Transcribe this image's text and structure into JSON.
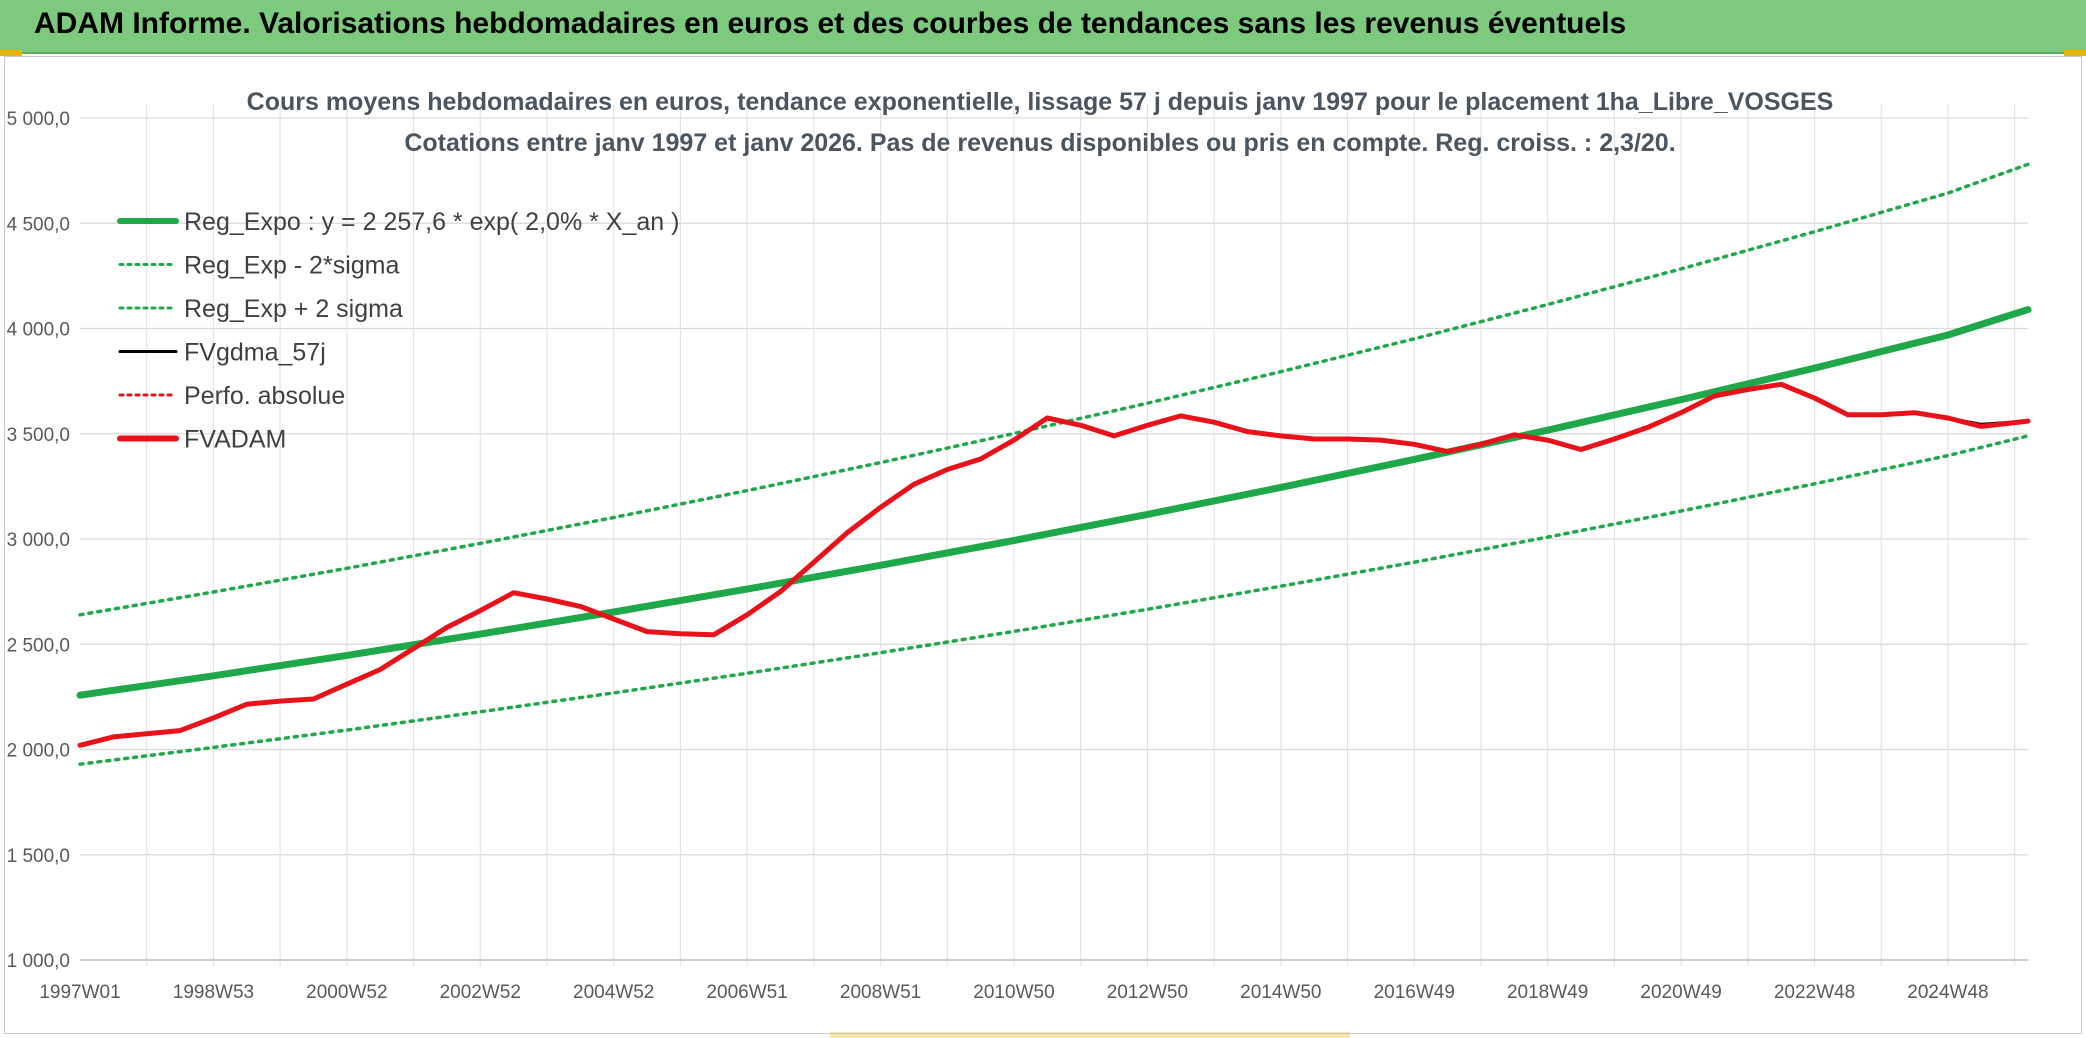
{
  "header": {
    "title": "ADAM Informe. Valorisations hebdomadaires en euros et des courbes de tendances sans les revenus éventuels"
  },
  "colors": {
    "header_bg": "#7dc97d",
    "trend": "#1fa84a",
    "band": "#1fa84a",
    "fvadam": "#e8121b",
    "fvgdma": "#000000",
    "perfo": "#e8121b"
  },
  "chart_data": {
    "type": "line",
    "title_line1": "Cours moyens hebdomadaires en euros, tendance exponentielle, lissage 57 j depuis janv 1997 pour le placement 1ha_Libre_VOSGES",
    "title_line2": "Cotations entre janv 1997 et janv 2026. Pas de revenus disponibles ou pris en compte. Reg. croiss. : 2,3/20.",
    "xlim": [
      1997.0,
      2026.2
    ],
    "ylim": [
      1000,
      5000
    ],
    "y_ticks": [
      1000,
      1500,
      2000,
      2500,
      3000,
      3500,
      4000,
      4500,
      5000
    ],
    "y_tick_labels": [
      "1 000,0",
      "1 500,0",
      "2 000,0",
      "2 500,0",
      "3 000,0",
      "3 500,0",
      "4 000,0",
      "4 500,0",
      "5 000,0"
    ],
    "x_ticks": [
      1997.0,
      1999.0,
      2001.0,
      2003.0,
      2005.0,
      2007.0,
      2009.0,
      2011.0,
      2013.0,
      2015.0,
      2017.0,
      2019.0,
      2021.0,
      2023.0,
      2025.0
    ],
    "x_tick_labels": [
      "1997W01",
      "1998W53",
      "2000W52",
      "2002W52",
      "2004W52",
      "2006W51",
      "2008W51",
      "2010W50",
      "2012W50",
      "2014W50",
      "2016W49",
      "2018W49",
      "2020W49",
      "2022W48",
      "2024W48"
    ],
    "legend": {
      "placement": "top-left",
      "entries": [
        {
          "label": "Reg_Expo : y = 2 257,6 * exp( 2,0% *  X_an )",
          "style": "solid-thick",
          "color": "#1fa84a"
        },
        {
          "label": "Reg_Exp - 2*sigma",
          "style": "dotted",
          "color": "#1fa84a"
        },
        {
          "label": "Reg_Exp + 2 sigma",
          "style": "dotted",
          "color": "#1fa84a"
        },
        {
          "label": "FVgdma_57j",
          "style": "solid",
          "color": "#000000"
        },
        {
          "label": "Perfo. absolue",
          "style": "dotted",
          "color": "#e8121b"
        },
        {
          "label": "FVADAM",
          "style": "solid-thick",
          "color": "#e8121b"
        }
      ]
    },
    "series": [
      {
        "name": "Reg_Expo",
        "x": [
          1997.0,
          1999.0,
          2001.0,
          2003.0,
          2005.0,
          2007.0,
          2009.0,
          2011.0,
          2013.0,
          2015.0,
          2017.0,
          2019.0,
          2021.0,
          2023.0,
          2025.0,
          2026.2
        ],
        "y": [
          2258,
          2350,
          2447,
          2548,
          2653,
          2762,
          2875,
          2993,
          3117,
          3245,
          3378,
          3517,
          3662,
          3812,
          3969,
          4090
        ]
      },
      {
        "name": "Reg_Exp - 2*sigma",
        "x": [
          1997.0,
          1999.0,
          2001.0,
          2003.0,
          2005.0,
          2007.0,
          2009.0,
          2011.0,
          2013.0,
          2015.0,
          2017.0,
          2019.0,
          2021.0,
          2023.0,
          2025.0,
          2026.2
        ],
        "y": [
          1930,
          2010,
          2092,
          2179,
          2269,
          2362,
          2460,
          2561,
          2666,
          2776,
          2890,
          3009,
          3133,
          3262,
          3396,
          3490
        ]
      },
      {
        "name": "Reg_Exp + 2 sigma",
        "x": [
          1997.0,
          1999.0,
          2001.0,
          2003.0,
          2005.0,
          2007.0,
          2009.0,
          2011.0,
          2013.0,
          2015.0,
          2017.0,
          2019.0,
          2021.0,
          2023.0,
          2025.0,
          2026.2
        ],
        "y": [
          2640,
          2748,
          2861,
          2979,
          3102,
          3230,
          3363,
          3501,
          3645,
          3795,
          3951,
          4114,
          4283,
          4460,
          4643,
          4780
        ]
      },
      {
        "name": "FVgdma_57j",
        "x": [
          1997.0,
          1997.5,
          1998.0,
          1998.5,
          1999.0,
          1999.5,
          2000.0,
          2000.5,
          2001.0,
          2001.5,
          2002.0,
          2002.5,
          2003.0,
          2003.5,
          2004.0,
          2004.5,
          2005.0,
          2005.5,
          2006.0,
          2006.5,
          2007.0,
          2007.5,
          2008.0,
          2008.5,
          2009.0,
          2009.5,
          2010.0,
          2010.5,
          2011.0,
          2011.5,
          2012.0,
          2012.5,
          2013.0,
          2013.5,
          2014.0,
          2014.5,
          2015.0,
          2015.5,
          2016.0,
          2016.5,
          2017.0,
          2017.5,
          2018.0,
          2018.5,
          2019.0,
          2019.5,
          2020.0,
          2020.5,
          2021.0,
          2021.5,
          2022.0,
          2022.5,
          2023.0,
          2023.5,
          2024.0,
          2024.5,
          2025.0,
          2025.5,
          2026.2
        ],
        "y": [
          2020,
          2060,
          2075,
          2090,
          2150,
          2215,
          2230,
          2240,
          2310,
          2380,
          2480,
          2580,
          2660,
          2745,
          2715,
          2680,
          2620,
          2560,
          2550,
          2545,
          2640,
          2750,
          2890,
          3030,
          3150,
          3260,
          3330,
          3380,
          3470,
          3570,
          3540,
          3490,
          3540,
          3585,
          3555,
          3510,
          3490,
          3475,
          3475,
          3470,
          3450,
          3415,
          3450,
          3495,
          3470,
          3425,
          3475,
          3530,
          3600,
          3680,
          3710,
          3735,
          3670,
          3590,
          3590,
          3600,
          3575,
          3545,
          3560
        ]
      },
      {
        "name": "FVADAM",
        "x": [
          1997.0,
          1997.5,
          1998.0,
          1998.5,
          1999.0,
          1999.5,
          2000.0,
          2000.5,
          2001.0,
          2001.5,
          2002.0,
          2002.5,
          2003.0,
          2003.5,
          2004.0,
          2004.5,
          2005.0,
          2005.5,
          2006.0,
          2006.5,
          2007.0,
          2007.5,
          2008.0,
          2008.5,
          2009.0,
          2009.5,
          2010.0,
          2010.5,
          2011.0,
          2011.5,
          2012.0,
          2012.5,
          2013.0,
          2013.5,
          2014.0,
          2014.5,
          2015.0,
          2015.5,
          2016.0,
          2016.5,
          2017.0,
          2017.5,
          2018.0,
          2018.5,
          2019.0,
          2019.5,
          2020.0,
          2020.5,
          2021.0,
          2021.5,
          2022.0,
          2022.5,
          2023.0,
          2023.5,
          2024.0,
          2024.5,
          2025.0,
          2025.5,
          2026.2
        ],
        "y": [
          2020,
          2060,
          2075,
          2090,
          2150,
          2215,
          2230,
          2240,
          2310,
          2380,
          2480,
          2580,
          2660,
          2745,
          2715,
          2680,
          2620,
          2560,
          2550,
          2545,
          2640,
          2750,
          2890,
          3030,
          3150,
          3260,
          3330,
          3380,
          3470,
          3575,
          3540,
          3490,
          3540,
          3585,
          3555,
          3510,
          3490,
          3475,
          3475,
          3470,
          3450,
          3415,
          3450,
          3495,
          3470,
          3425,
          3475,
          3530,
          3600,
          3680,
          3710,
          3735,
          3670,
          3590,
          3590,
          3600,
          3575,
          3535,
          3560
        ]
      }
    ]
  }
}
